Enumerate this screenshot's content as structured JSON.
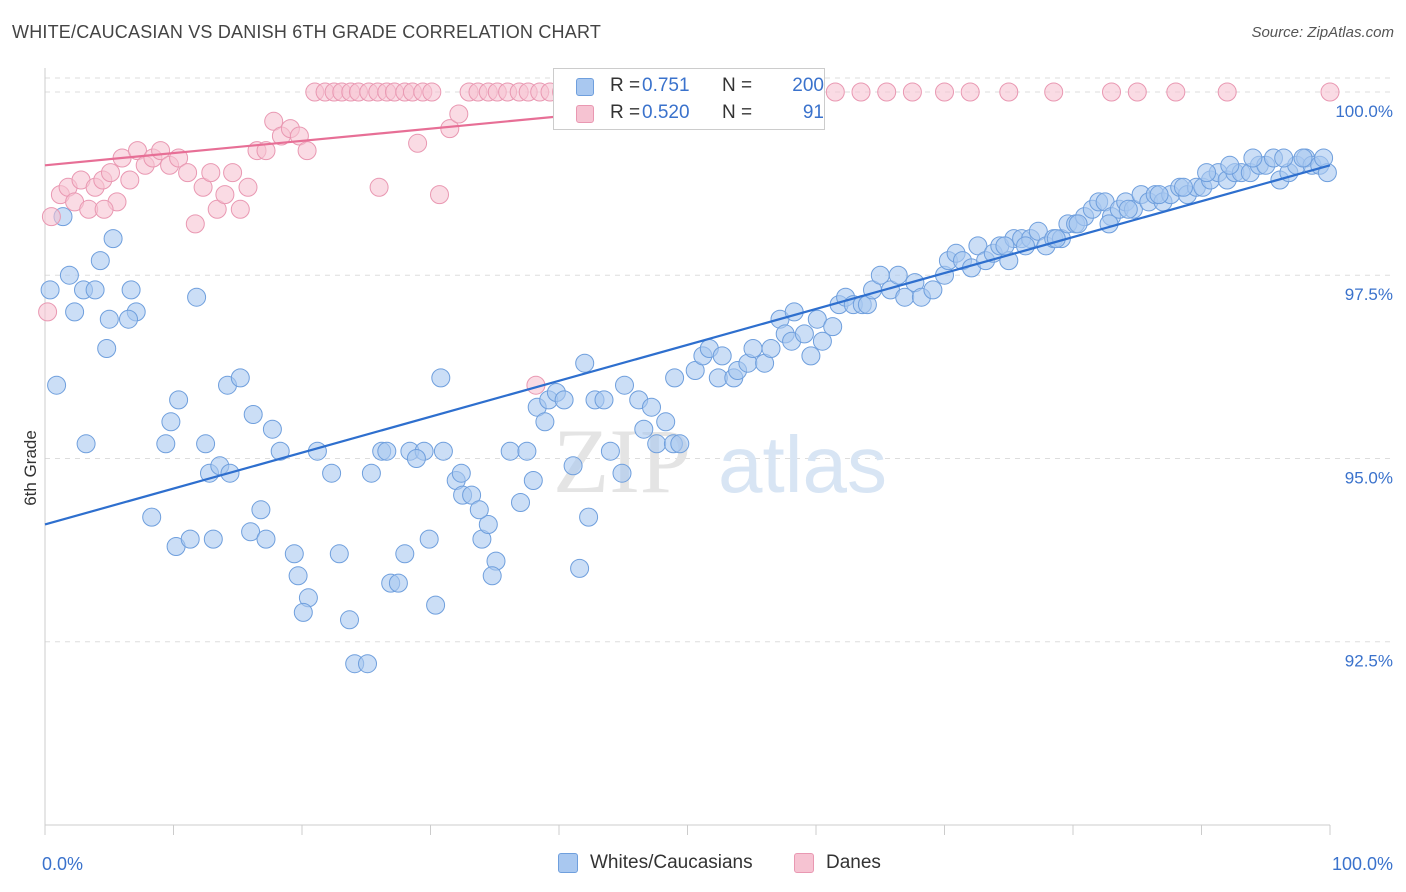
{
  "header": {
    "title": "WHITE/CAUCASIAN VS DANISH 6TH GRADE CORRELATION CHART",
    "source": "Source: ZipAtlas.com"
  },
  "watermark": {
    "zip": "ZIP",
    "atlas": "atlas"
  },
  "legend_top": [
    {
      "r_label": "R = ",
      "r_value": "0.751",
      "n_label": "N = ",
      "n_value": "200"
    },
    {
      "r_label": "R = ",
      "r_value": "0.520",
      "n_label": "N = ",
      "n_value": "91"
    }
  ],
  "colors": {
    "blue_fill": "#a9c8f0",
    "blue_stroke": "#6f9fdd",
    "blue_line": "#2e6fce",
    "pink_fill": "#f6c3d2",
    "pink_stroke": "#e998b2",
    "pink_line": "#e76f96",
    "tick_label": "#3a72cc",
    "grid": "#dddddd"
  },
  "chart_data": {
    "type": "scatter",
    "title": "WHITE/CAUCASIAN VS DANISH 6TH GRADE CORRELATION CHART",
    "xlabel": "",
    "ylabel": "6th Grade",
    "xlim": [
      0,
      100
    ],
    "ylim": [
      90.0,
      100.3
    ],
    "x_tick_labels": [
      "0.0%",
      "100.0%"
    ],
    "y_ticks": [
      92.5,
      95.0,
      97.5,
      100.0
    ],
    "y_tick_labels": [
      "92.5%",
      "95.0%",
      "97.5%",
      "100.0%"
    ],
    "grid": true,
    "legend_position": "top-center",
    "series": [
      {
        "name": "Whites/Caucasians",
        "R": 0.751,
        "N": 200,
        "trend": {
          "x": [
            0,
            100
          ],
          "y": [
            94.1,
            99.0
          ]
        },
        "points": [
          [
            1.4,
            98.3
          ],
          [
            0.4,
            97.3
          ],
          [
            1.9,
            97.5
          ],
          [
            2.3,
            97.0
          ],
          [
            3.0,
            97.3
          ],
          [
            3.9,
            97.3
          ],
          [
            4.3,
            97.7
          ],
          [
            5.3,
            98.0
          ],
          [
            6.7,
            97.3
          ],
          [
            7.1,
            97.0
          ],
          [
            5.0,
            96.9
          ],
          [
            4.8,
            96.5
          ],
          [
            0.9,
            96.0
          ],
          [
            6.5,
            96.9
          ],
          [
            11.8,
            97.2
          ],
          [
            3.2,
            95.2
          ],
          [
            9.4,
            95.2
          ],
          [
            10.4,
            95.8
          ],
          [
            9.8,
            95.5
          ],
          [
            12.5,
            95.2
          ],
          [
            14.2,
            96.0
          ],
          [
            15.2,
            96.1
          ],
          [
            16.2,
            95.6
          ],
          [
            17.7,
            95.4
          ],
          [
            18.3,
            95.1
          ],
          [
            21.2,
            95.1
          ],
          [
            22.3,
            94.8
          ],
          [
            12.8,
            94.8
          ],
          [
            13.6,
            94.9
          ],
          [
            14.4,
            94.8
          ],
          [
            8.3,
            94.2
          ],
          [
            10.2,
            93.8
          ],
          [
            11.3,
            93.9
          ],
          [
            13.1,
            93.9
          ],
          [
            16.0,
            94.0
          ],
          [
            16.8,
            94.3
          ],
          [
            17.2,
            93.9
          ],
          [
            19.4,
            93.7
          ],
          [
            19.7,
            93.4
          ],
          [
            20.5,
            93.1
          ],
          [
            20.1,
            92.9
          ],
          [
            22.9,
            93.7
          ],
          [
            23.7,
            92.8
          ],
          [
            24.1,
            92.2
          ],
          [
            25.1,
            92.2
          ],
          [
            26.2,
            95.1
          ],
          [
            26.6,
            95.1
          ],
          [
            28.4,
            95.1
          ],
          [
            29.5,
            95.1
          ],
          [
            31.0,
            95.1
          ],
          [
            28.9,
            95.0
          ],
          [
            25.4,
            94.8
          ],
          [
            28.0,
            93.7
          ],
          [
            26.9,
            93.3
          ],
          [
            27.5,
            93.3
          ],
          [
            30.4,
            93.0
          ],
          [
            29.9,
            93.9
          ],
          [
            30.8,
            96.1
          ],
          [
            32.0,
            94.7
          ],
          [
            32.4,
            94.8
          ],
          [
            32.5,
            94.5
          ],
          [
            33.2,
            94.5
          ],
          [
            34.0,
            93.9
          ],
          [
            34.5,
            94.1
          ],
          [
            33.8,
            94.3
          ],
          [
            35.1,
            93.6
          ],
          [
            34.8,
            93.4
          ],
          [
            36.2,
            95.1
          ],
          [
            37.5,
            95.1
          ],
          [
            37.0,
            94.4
          ],
          [
            38.0,
            94.7
          ],
          [
            38.3,
            95.7
          ],
          [
            38.9,
            95.5
          ],
          [
            39.2,
            95.8
          ],
          [
            39.8,
            95.9
          ],
          [
            40.4,
            95.8
          ],
          [
            41.1,
            94.9
          ],
          [
            41.6,
            93.5
          ],
          [
            42.3,
            94.2
          ],
          [
            42.0,
            96.3
          ],
          [
            42.8,
            95.8
          ],
          [
            43.5,
            95.8
          ],
          [
            44.0,
            95.1
          ],
          [
            44.9,
            94.8
          ],
          [
            45.1,
            96.0
          ],
          [
            46.2,
            95.8
          ],
          [
            46.6,
            95.4
          ],
          [
            47.2,
            95.7
          ],
          [
            47.6,
            95.2
          ],
          [
            48.3,
            95.5
          ],
          [
            48.9,
            95.2
          ],
          [
            49.4,
            95.2
          ],
          [
            49.0,
            96.1
          ],
          [
            50.6,
            96.2
          ],
          [
            51.2,
            96.4
          ],
          [
            51.7,
            96.5
          ],
          [
            52.4,
            96.1
          ],
          [
            52.7,
            96.4
          ],
          [
            53.6,
            96.1
          ],
          [
            53.9,
            96.2
          ],
          [
            54.7,
            96.3
          ],
          [
            55.1,
            96.5
          ],
          [
            56.0,
            96.3
          ],
          [
            56.5,
            96.5
          ],
          [
            57.2,
            96.9
          ],
          [
            57.6,
            96.7
          ],
          [
            58.3,
            97.0
          ],
          [
            58.1,
            96.6
          ],
          [
            59.1,
            96.7
          ],
          [
            59.6,
            96.4
          ],
          [
            60.1,
            96.9
          ],
          [
            60.5,
            96.6
          ],
          [
            61.3,
            96.8
          ],
          [
            61.8,
            97.1
          ],
          [
            62.3,
            97.2
          ],
          [
            62.9,
            97.1
          ],
          [
            63.6,
            97.1
          ],
          [
            64.0,
            97.1
          ],
          [
            64.4,
            97.3
          ],
          [
            65.0,
            97.5
          ],
          [
            65.8,
            97.3
          ],
          [
            66.4,
            97.5
          ],
          [
            66.9,
            97.2
          ],
          [
            67.7,
            97.4
          ],
          [
            68.2,
            97.2
          ],
          [
            69.1,
            97.3
          ],
          [
            70.0,
            97.5
          ],
          [
            70.3,
            97.7
          ],
          [
            70.9,
            97.8
          ],
          [
            71.4,
            97.7
          ],
          [
            72.1,
            97.6
          ],
          [
            72.6,
            97.9
          ],
          [
            73.2,
            97.7
          ],
          [
            73.8,
            97.8
          ],
          [
            74.3,
            97.9
          ],
          [
            75.0,
            97.7
          ],
          [
            75.4,
            98.0
          ],
          [
            76.0,
            98.0
          ],
          [
            76.7,
            98.0
          ],
          [
            77.3,
            98.1
          ],
          [
            77.9,
            97.9
          ],
          [
            78.5,
            98.0
          ],
          [
            79.1,
            98.0
          ],
          [
            79.6,
            98.2
          ],
          [
            80.2,
            98.2
          ],
          [
            80.9,
            98.3
          ],
          [
            81.5,
            98.4
          ],
          [
            82.0,
            98.5
          ],
          [
            82.5,
            98.5
          ],
          [
            83.0,
            98.3
          ],
          [
            83.6,
            98.4
          ],
          [
            84.1,
            98.5
          ],
          [
            84.7,
            98.4
          ],
          [
            85.3,
            98.6
          ],
          [
            85.9,
            98.5
          ],
          [
            86.4,
            98.6
          ],
          [
            87.0,
            98.5
          ],
          [
            87.6,
            98.6
          ],
          [
            88.3,
            98.7
          ],
          [
            88.9,
            98.6
          ],
          [
            89.6,
            98.7
          ],
          [
            90.1,
            98.7
          ],
          [
            90.7,
            98.8
          ],
          [
            91.3,
            98.9
          ],
          [
            92.0,
            98.8
          ],
          [
            92.6,
            98.9
          ],
          [
            93.1,
            98.9
          ],
          [
            93.8,
            98.9
          ],
          [
            94.5,
            99.0
          ],
          [
            95.0,
            99.0
          ],
          [
            95.6,
            99.1
          ],
          [
            96.1,
            98.8
          ],
          [
            96.8,
            98.9
          ],
          [
            97.4,
            99.0
          ],
          [
            98.1,
            99.1
          ],
          [
            98.6,
            99.0
          ],
          [
            99.2,
            99.0
          ],
          [
            99.8,
            98.9
          ],
          [
            99.5,
            99.1
          ],
          [
            97.9,
            99.1
          ],
          [
            96.4,
            99.1
          ],
          [
            94.0,
            99.1
          ],
          [
            92.2,
            99.0
          ],
          [
            90.4,
            98.9
          ],
          [
            88.6,
            98.7
          ],
          [
            86.7,
            98.6
          ],
          [
            84.3,
            98.4
          ],
          [
            82.8,
            98.2
          ],
          [
            80.4,
            98.2
          ],
          [
            78.7,
            98.0
          ],
          [
            76.3,
            97.9
          ],
          [
            74.7,
            97.9
          ]
        ]
      },
      {
        "name": "Danes",
        "R": 0.52,
        "N": 91,
        "trend": {
          "x": [
            0,
            60
          ],
          "y": [
            99.0,
            100.0
          ]
        },
        "points": [
          [
            0.5,
            98.3
          ],
          [
            1.2,
            98.6
          ],
          [
            1.8,
            98.7
          ],
          [
            2.3,
            98.5
          ],
          [
            2.8,
            98.8
          ],
          [
            3.4,
            98.4
          ],
          [
            3.9,
            98.7
          ],
          [
            4.5,
            98.8
          ],
          [
            5.1,
            98.9
          ],
          [
            5.6,
            98.5
          ],
          [
            6.0,
            99.1
          ],
          [
            6.6,
            98.8
          ],
          [
            7.2,
            99.2
          ],
          [
            7.8,
            99.0
          ],
          [
            8.4,
            99.1
          ],
          [
            9.0,
            99.2
          ],
          [
            9.7,
            99.0
          ],
          [
            10.4,
            99.1
          ],
          [
            11.1,
            98.9
          ],
          [
            11.7,
            98.2
          ],
          [
            12.3,
            98.7
          ],
          [
            12.9,
            98.9
          ],
          [
            13.4,
            98.4
          ],
          [
            14.0,
            98.6
          ],
          [
            14.6,
            98.9
          ],
          [
            15.2,
            98.4
          ],
          [
            15.8,
            98.7
          ],
          [
            16.5,
            99.2
          ],
          [
            17.2,
            99.2
          ],
          [
            17.8,
            99.6
          ],
          [
            18.4,
            99.4
          ],
          [
            19.1,
            99.5
          ],
          [
            19.8,
            99.4
          ],
          [
            20.4,
            99.2
          ],
          [
            21.0,
            100.0
          ],
          [
            21.8,
            100.0
          ],
          [
            22.5,
            100.0
          ],
          [
            23.1,
            100.0
          ],
          [
            23.8,
            100.0
          ],
          [
            24.4,
            100.0
          ],
          [
            25.2,
            100.0
          ],
          [
            25.9,
            100.0
          ],
          [
            26.6,
            100.0
          ],
          [
            27.2,
            100.0
          ],
          [
            28.0,
            100.0
          ],
          [
            28.6,
            100.0
          ],
          [
            29.4,
            100.0
          ],
          [
            30.1,
            100.0
          ],
          [
            30.7,
            98.6
          ],
          [
            31.5,
            99.5
          ],
          [
            32.2,
            99.7
          ],
          [
            33.0,
            100.0
          ],
          [
            33.7,
            100.0
          ],
          [
            34.5,
            100.0
          ],
          [
            35.2,
            100.0
          ],
          [
            36.0,
            100.0
          ],
          [
            36.9,
            100.0
          ],
          [
            37.6,
            100.0
          ],
          [
            38.5,
            100.0
          ],
          [
            39.3,
            100.0
          ],
          [
            40.2,
            100.0
          ],
          [
            41.0,
            100.0
          ],
          [
            42.5,
            100.0
          ],
          [
            44.0,
            100.0
          ],
          [
            45.5,
            100.0
          ],
          [
            47.0,
            100.0
          ],
          [
            48.5,
            100.0
          ],
          [
            50.0,
            100.0
          ],
          [
            51.5,
            100.0
          ],
          [
            53.0,
            100.0
          ],
          [
            55.0,
            100.0
          ],
          [
            57.0,
            100.0
          ],
          [
            59.0,
            100.0
          ],
          [
            61.5,
            100.0
          ],
          [
            63.5,
            100.0
          ],
          [
            65.5,
            100.0
          ],
          [
            67.5,
            100.0
          ],
          [
            70.0,
            100.0
          ],
          [
            72.0,
            100.0
          ],
          [
            75.0,
            100.0
          ],
          [
            78.5,
            100.0
          ],
          [
            83.0,
            100.0
          ],
          [
            85.0,
            100.0
          ],
          [
            88.0,
            100.0
          ],
          [
            92.0,
            100.0
          ],
          [
            100.0,
            100.0
          ],
          [
            38.2,
            96.0
          ],
          [
            29.0,
            99.3
          ],
          [
            0.2,
            97.0
          ],
          [
            4.6,
            98.4
          ],
          [
            26.0,
            98.7
          ]
        ]
      }
    ]
  },
  "legend_bottom": [
    "Whites/Caucasians",
    "Danes"
  ]
}
